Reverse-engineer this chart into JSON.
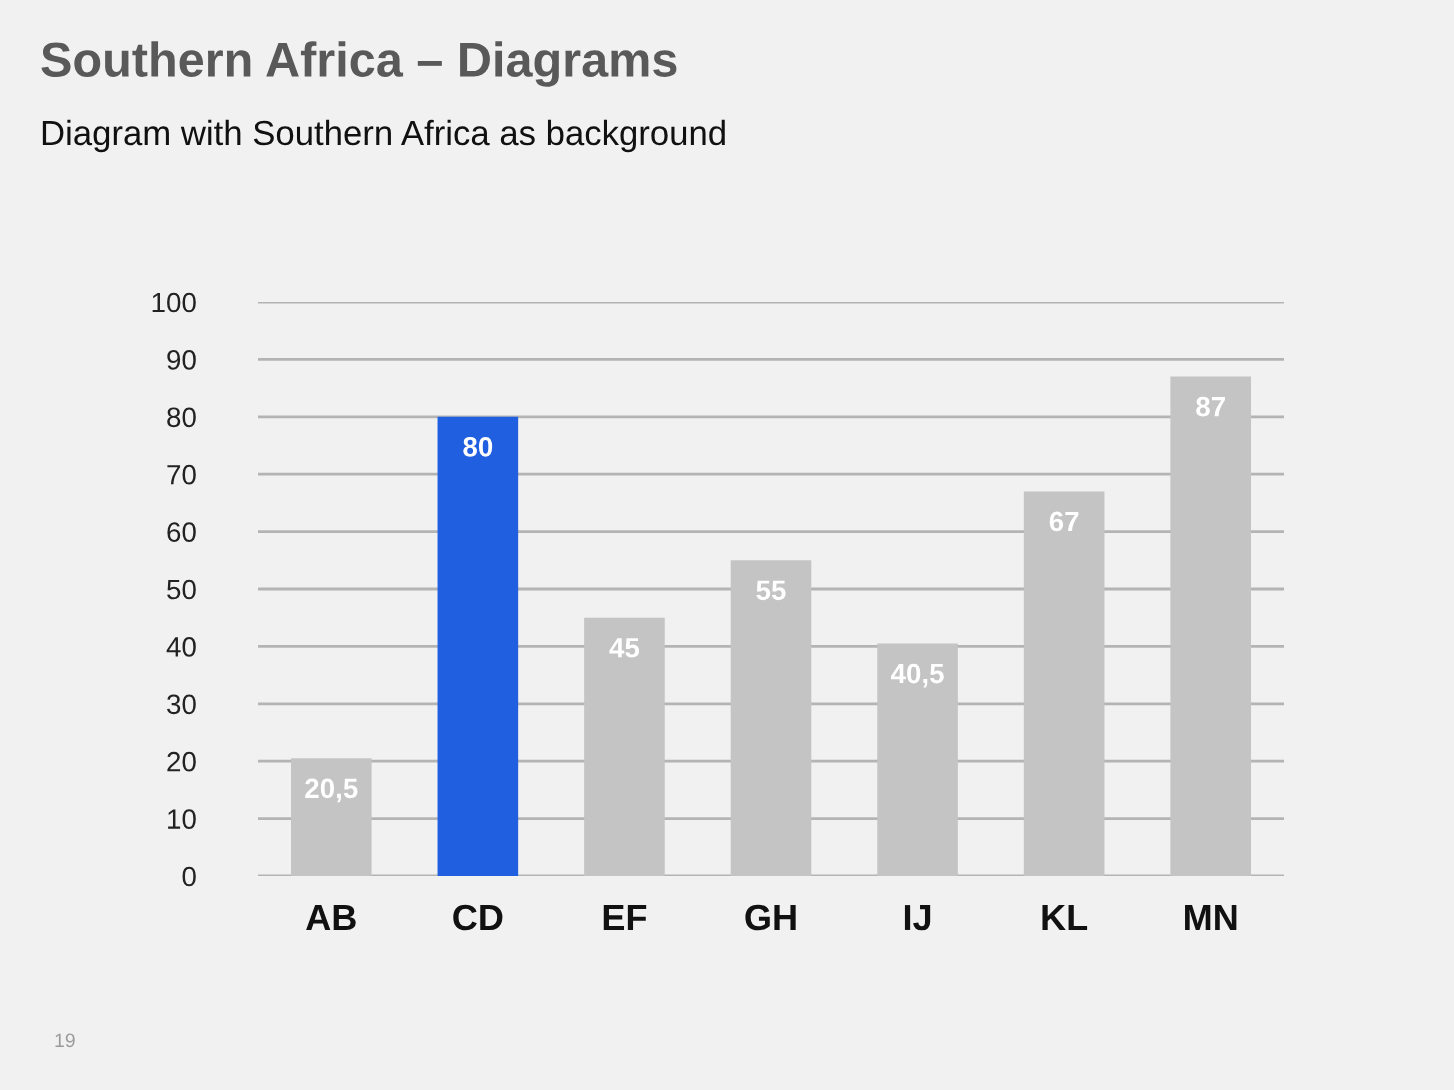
{
  "chart_data": {
    "type": "bar",
    "title": "Southern Africa – Diagrams",
    "subtitle": "Diagram with Southern Africa as background",
    "categories": [
      "AB",
      "CD",
      "EF",
      "GH",
      "IJ",
      "KL",
      "MN"
    ],
    "values": [
      20.5,
      80,
      45,
      55,
      40.5,
      67,
      87
    ],
    "colors": [
      "#c4c4c4",
      "#1f5fe0",
      "#c4c4c4",
      "#c4c4c4",
      "#c4c4c4",
      "#c4c4c4",
      "#c4c4c4"
    ],
    "value_labels": [
      "20,5",
      "80",
      "45",
      "55",
      "40,5",
      "67",
      "87"
    ],
    "ylim": [
      0,
      100
    ],
    "yticks": [
      0,
      10,
      20,
      30,
      40,
      50,
      60,
      70,
      80,
      90,
      100
    ],
    "grid": "y",
    "annotations": [
      "19"
    ]
  }
}
